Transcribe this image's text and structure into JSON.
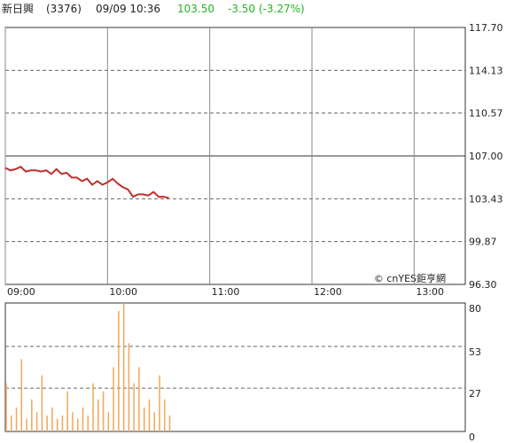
{
  "header": {
    "name": "新日興",
    "code": "(3376)",
    "datetime": "09/09 10:36",
    "price": "103.50",
    "change": "-3.50 (-3.27%)"
  },
  "watermark": "© cnYES鉅亨網",
  "chart_data": [
    {
      "type": "line",
      "color": "#c0302b",
      "x": [
        "09:00",
        "09:03",
        "09:06",
        "09:09",
        "09:12",
        "09:15",
        "09:18",
        "09:21",
        "09:24",
        "09:27",
        "09:30",
        "09:33",
        "09:36",
        "09:39",
        "09:42",
        "09:45",
        "09:48",
        "09:51",
        "09:54",
        "09:57",
        "10:00",
        "10:03",
        "10:06",
        "10:09",
        "10:12",
        "10:15",
        "10:18",
        "10:21",
        "10:24",
        "10:27",
        "10:30",
        "10:33",
        "10:36"
      ],
      "values": [
        106.0,
        105.8,
        105.9,
        106.1,
        105.7,
        105.8,
        105.8,
        105.7,
        105.8,
        105.5,
        105.9,
        105.5,
        105.6,
        105.2,
        105.2,
        104.9,
        105.1,
        104.6,
        104.9,
        104.6,
        104.8,
        105.1,
        104.7,
        104.4,
        104.2,
        103.6,
        103.8,
        103.8,
        103.7,
        104.0,
        103.6,
        103.6,
        103.5
      ],
      "xlim": [
        "09:00",
        "13:30"
      ],
      "xticks": [
        "09:00",
        "10:00",
        "11:00",
        "12:00",
        "13:00"
      ],
      "ylim": [
        96.3,
        117.7
      ],
      "yticks": [
        {
          "value": 96.3,
          "label": "96.30"
        },
        {
          "value": 99.87,
          "label": "99.87"
        },
        {
          "value": 103.43,
          "label": "103.43"
        },
        {
          "value": 107,
          "label": "107.00"
        },
        {
          "value": 110.57,
          "label": "110.57"
        },
        {
          "value": 114.13,
          "label": "114.13"
        },
        {
          "value": 117.7,
          "label": "117.70"
        }
      ],
      "prev_close": 107,
      "grid": true
    },
    {
      "type": "bar",
      "color": "#f2a65a",
      "x": [
        "09:00",
        "09:03",
        "09:06",
        "09:09",
        "09:12",
        "09:15",
        "09:18",
        "09:21",
        "09:24",
        "09:27",
        "09:30",
        "09:33",
        "09:36",
        "09:39",
        "09:42",
        "09:45",
        "09:48",
        "09:51",
        "09:54",
        "09:57",
        "10:00",
        "10:03",
        "10:06",
        "10:09",
        "10:12",
        "10:15",
        "10:18",
        "10:21",
        "10:24",
        "10:27",
        "10:30",
        "10:33",
        "10:36"
      ],
      "values": [
        30,
        10,
        15,
        45,
        8,
        20,
        12,
        35,
        10,
        15,
        8,
        10,
        25,
        12,
        8,
        15,
        10,
        30,
        20,
        25,
        12,
        40,
        75,
        80,
        55,
        30,
        40,
        15,
        20,
        12,
        35,
        20,
        10
      ],
      "xlim": [
        "09:00",
        "13:30"
      ],
      "ylim": [
        0,
        80
      ],
      "yticks": [
        0,
        27,
        53,
        80
      ],
      "grid": true
    }
  ]
}
